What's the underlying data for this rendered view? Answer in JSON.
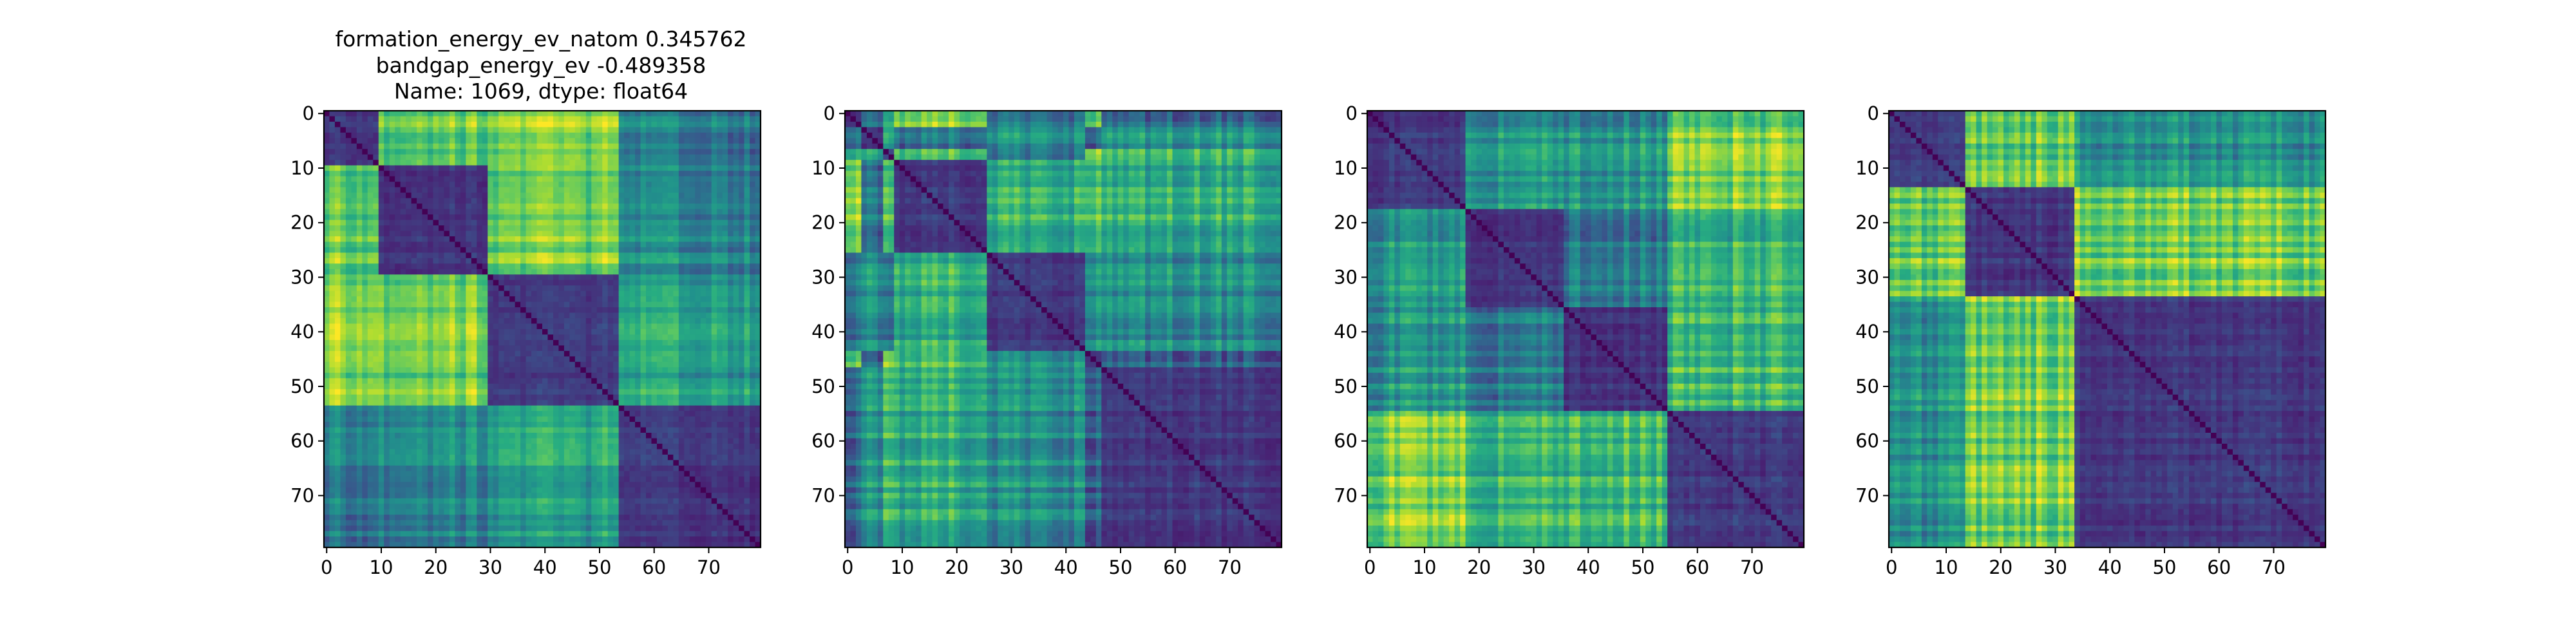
{
  "figure": {
    "title_lines": [
      "formation_energy_ev_natom    0.345762",
      "bandgap_energy_ev          -0.489358",
      "Name: 1069, dtype: float64"
    ]
  },
  "colors": {
    "colormap": "viridis",
    "low": "#440154",
    "mid": "#21918c",
    "high": "#fde725"
  },
  "chart_data": [
    {
      "type": "heatmap",
      "title": "formation_energy_ev_natom    0.345762\nbandgap_energy_ev          -0.489358\nName: 1069, dtype: float64",
      "size": 80,
      "clusters": [
        [
          0,
          10
        ],
        [
          10,
          30
        ],
        [
          30,
          54
        ],
        [
          54,
          80
        ]
      ],
      "xticks": [
        0,
        10,
        20,
        30,
        40,
        50,
        60,
        70
      ],
      "yticks": [
        0,
        10,
        20,
        30,
        40,
        50,
        60,
        70
      ],
      "xlim": [
        0,
        79
      ],
      "ylim": [
        79,
        0
      ],
      "colormap": "viridis"
    },
    {
      "type": "heatmap",
      "title": "",
      "size": 80,
      "clusters": [
        [
          0,
          3
        ],
        [
          3,
          7
        ],
        [
          7,
          9
        ],
        [
          9,
          26
        ],
        [
          26,
          44
        ],
        [
          44,
          47
        ],
        [
          47,
          80
        ]
      ],
      "xticks": [
        0,
        10,
        20,
        30,
        40,
        50,
        60,
        70
      ],
      "yticks": [
        0,
        10,
        20,
        30,
        40,
        50,
        60,
        70
      ],
      "xlim": [
        0,
        79
      ],
      "ylim": [
        79,
        0
      ],
      "colormap": "viridis"
    },
    {
      "type": "heatmap",
      "title": "",
      "size": 80,
      "clusters": [
        [
          0,
          18
        ],
        [
          18,
          36
        ],
        [
          36,
          55
        ],
        [
          55,
          80
        ]
      ],
      "xticks": [
        0,
        10,
        20,
        30,
        40,
        50,
        60,
        70
      ],
      "yticks": [
        0,
        10,
        20,
        30,
        40,
        50,
        60,
        70
      ],
      "xlim": [
        0,
        79
      ],
      "ylim": [
        79,
        0
      ],
      "colormap": "viridis"
    },
    {
      "type": "heatmap",
      "title": "",
      "size": 80,
      "clusters": [
        [
          0,
          14
        ],
        [
          14,
          34
        ],
        [
          34,
          80
        ]
      ],
      "xticks": [
        0,
        10,
        20,
        30,
        40,
        50,
        60,
        70
      ],
      "yticks": [
        0,
        10,
        20,
        30,
        40,
        50,
        60,
        70
      ],
      "xlim": [
        0,
        79
      ],
      "ylim": [
        79,
        0
      ],
      "colormap": "viridis"
    }
  ]
}
